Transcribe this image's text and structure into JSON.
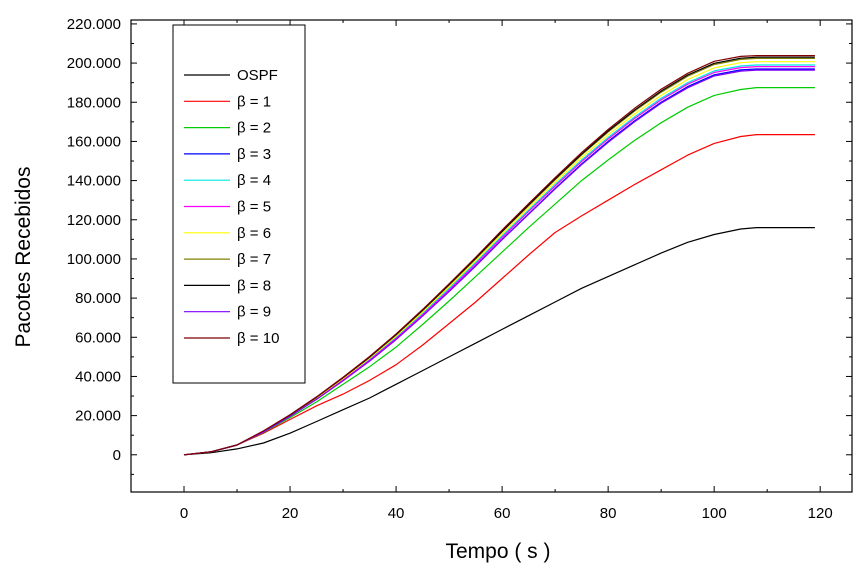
{
  "chart_data": {
    "type": "line",
    "xlabel": "Tempo ( s )",
    "ylabel": "Pacotes Recebidos",
    "xlim": [
      -10,
      126
    ],
    "ylim": [
      -19000,
      222000
    ],
    "xticks": [
      0,
      20,
      40,
      60,
      80,
      100,
      120
    ],
    "xtick_labels": [
      "0",
      "20",
      "40",
      "60",
      "80",
      "100",
      "120"
    ],
    "yticks": [
      0,
      20000,
      40000,
      60000,
      80000,
      100000,
      120000,
      140000,
      160000,
      180000,
      200000,
      220000
    ],
    "ytick_labels": [
      "0",
      "20.000",
      "40.000",
      "60.000",
      "80.000",
      "100.000",
      "120.000",
      "140.000",
      "160.000",
      "180.000",
      "200.000",
      "220.000"
    ],
    "legend_position": "top-left",
    "grid": false,
    "series": [
      {
        "name": "OSPF",
        "color": "#000000",
        "x": [
          0,
          5,
          10,
          15,
          20,
          25,
          30,
          35,
          40,
          45,
          50,
          55,
          60,
          65,
          70,
          75,
          80,
          85,
          90,
          95,
          100,
          105,
          108,
          119
        ],
        "y": [
          0,
          1000,
          3000,
          6000,
          11000,
          17000,
          23000,
          29000,
          36000,
          43000,
          50000,
          57000,
          64000,
          71000,
          78000,
          85000,
          91000,
          97000,
          103000,
          108500,
          112500,
          115300,
          116000,
          116000
        ]
      },
      {
        "name": "β = 1",
        "color": "#ff0000",
        "x": [
          0,
          5,
          10,
          15,
          20,
          25,
          30,
          35,
          40,
          45,
          50,
          55,
          60,
          65,
          70,
          75,
          80,
          85,
          90,
          95,
          100,
          105,
          108,
          119
        ],
        "y": [
          0,
          1500,
          5000,
          11000,
          18000,
          25000,
          31000,
          38000,
          46000,
          56000,
          67000,
          78000,
          90000,
          102000,
          113500,
          122000,
          130000,
          138000,
          145500,
          153000,
          159000,
          162500,
          163500,
          163500
        ]
      },
      {
        "name": "β = 2",
        "color": "#00cc00",
        "x": [
          0,
          5,
          10,
          15,
          20,
          25,
          30,
          35,
          40,
          45,
          50,
          55,
          60,
          65,
          70,
          75,
          80,
          85,
          90,
          95,
          100,
          105,
          108,
          119
        ],
        "y": [
          0,
          1500,
          5000,
          11500,
          19000,
          27000,
          36000,
          45000,
          55000,
          66500,
          78500,
          91000,
          103500,
          116000,
          128000,
          140000,
          150500,
          160500,
          169500,
          177500,
          183500,
          186500,
          187500,
          187500
        ]
      },
      {
        "name": "β = 3",
        "color": "#0000ff",
        "x": [
          0,
          5,
          10,
          15,
          20,
          25,
          30,
          35,
          40,
          45,
          50,
          55,
          60,
          65,
          70,
          75,
          80,
          85,
          90,
          95,
          100,
          105,
          108,
          119
        ],
        "y": [
          0,
          1500,
          5000,
          11800,
          19700,
          28500,
          38000,
          48000,
          59000,
          71000,
          83500,
          96500,
          110000,
          123000,
          136000,
          148500,
          160000,
          170500,
          180000,
          188000,
          194000,
          196500,
          197000,
          197000
        ]
      },
      {
        "name": "β = 4",
        "color": "#00e5e5",
        "x": [
          0,
          5,
          10,
          15,
          20,
          25,
          30,
          35,
          40,
          45,
          50,
          55,
          60,
          65,
          70,
          75,
          80,
          85,
          90,
          95,
          100,
          105,
          108,
          119
        ],
        "y": [
          0,
          1500,
          5000,
          11900,
          19900,
          28800,
          38500,
          48800,
          60000,
          72200,
          85000,
          98200,
          111800,
          125000,
          138000,
          150500,
          162000,
          172500,
          182000,
          190000,
          196000,
          198500,
          199000,
          199000
        ]
      },
      {
        "name": "β = 5",
        "color": "#ff00ff",
        "x": [
          0,
          5,
          10,
          15,
          20,
          25,
          30,
          35,
          40,
          45,
          50,
          55,
          60,
          65,
          70,
          75,
          80,
          85,
          90,
          95,
          100,
          105,
          108,
          119
        ],
        "y": [
          0,
          1500,
          5000,
          11800,
          19800,
          28600,
          38200,
          48300,
          59400,
          71500,
          84200,
          97400,
          111000,
          124200,
          137200,
          149700,
          161200,
          171700,
          181200,
          189200,
          195200,
          197700,
          198200,
          198200
        ]
      },
      {
        "name": "β = 6",
        "color": "#ffff00",
        "x": [
          0,
          5,
          10,
          15,
          20,
          25,
          30,
          35,
          40,
          45,
          50,
          55,
          60,
          65,
          70,
          75,
          80,
          85,
          90,
          95,
          100,
          105,
          108,
          119
        ],
        "y": [
          0,
          1500,
          5000,
          12000,
          20100,
          29100,
          38900,
          49300,
          60600,
          72900,
          85800,
          99100,
          112800,
          126100,
          139200,
          151800,
          163400,
          174000,
          183500,
          191600,
          197600,
          200200,
          200700,
          200700
        ]
      },
      {
        "name": "β = 7",
        "color": "#808000",
        "x": [
          0,
          5,
          10,
          15,
          20,
          25,
          30,
          35,
          40,
          45,
          50,
          55,
          60,
          65,
          70,
          75,
          80,
          85,
          90,
          95,
          100,
          105,
          108,
          119
        ],
        "y": [
          0,
          1500,
          5000,
          12100,
          20300,
          29400,
          39300,
          49800,
          61200,
          73600,
          86600,
          100000,
          113800,
          127200,
          140400,
          153100,
          164800,
          175500,
          185100,
          193300,
          199300,
          201900,
          202400,
          202400
        ]
      },
      {
        "name": "β = 8",
        "color": "#000000",
        "x": [
          0,
          5,
          10,
          15,
          20,
          25,
          30,
          35,
          40,
          45,
          50,
          55,
          60,
          65,
          70,
          75,
          80,
          85,
          90,
          95,
          100,
          105,
          108,
          119
        ],
        "y": [
          0,
          1500,
          5000,
          12100,
          20300,
          29400,
          39400,
          49900,
          61400,
          73800,
          86900,
          100300,
          114100,
          127600,
          140800,
          153500,
          165300,
          176000,
          185700,
          193900,
          199900,
          202500,
          203000,
          203000
        ]
      },
      {
        "name": "β = 9",
        "color": "#8000ff",
        "x": [
          0,
          5,
          10,
          15,
          20,
          25,
          30,
          35,
          40,
          45,
          50,
          55,
          60,
          65,
          70,
          75,
          80,
          85,
          90,
          95,
          100,
          105,
          108,
          119
        ],
        "y": [
          0,
          1500,
          5000,
          11700,
          19600,
          28300,
          37800,
          47800,
          58800,
          70800,
          83300,
          96300,
          109800,
          122800,
          135700,
          148100,
          159500,
          170000,
          179500,
          187400,
          193400,
          195900,
          196400,
          196400
        ]
      },
      {
        "name": "β = 10",
        "color": "#800000",
        "x": [
          0,
          5,
          10,
          15,
          20,
          25,
          30,
          35,
          40,
          45,
          50,
          55,
          60,
          65,
          70,
          75,
          80,
          85,
          90,
          95,
          100,
          105,
          108,
          119
        ],
        "y": [
          0,
          1500,
          5000,
          12200,
          20400,
          29600,
          39600,
          50200,
          61700,
          74200,
          87300,
          100800,
          114700,
          128200,
          141500,
          154300,
          166100,
          176900,
          186600,
          194800,
          200900,
          203400,
          203800,
          203800
        ]
      }
    ]
  }
}
